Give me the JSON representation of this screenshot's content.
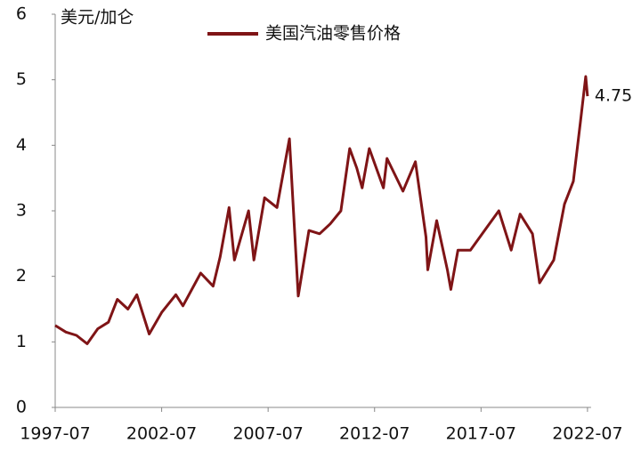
{
  "chart_data": {
    "type": "line",
    "y_label": "美元/加仑",
    "x": [
      "1997-07",
      "1998-01",
      "1998-07",
      "1999-01",
      "1999-07",
      "2000-01",
      "2000-06",
      "2000-12",
      "2001-05",
      "2001-12",
      "2002-07",
      "2003-03",
      "2003-07",
      "2004-05",
      "2004-12",
      "2005-04",
      "2005-09",
      "2005-12",
      "2006-08",
      "2006-11",
      "2007-05",
      "2007-12",
      "2008-07",
      "2008-12",
      "2009-06",
      "2009-12",
      "2010-06",
      "2010-12",
      "2011-05",
      "2011-09",
      "2011-12",
      "2012-04",
      "2012-12",
      "2013-02",
      "2013-11",
      "2014-06",
      "2014-12",
      "2015-01",
      "2015-06",
      "2015-12",
      "2016-02",
      "2016-06",
      "2017-01",
      "2017-09",
      "2018-05",
      "2018-12",
      "2019-05",
      "2019-12",
      "2020-04",
      "2020-12",
      "2021-06",
      "2021-11",
      "2022-03",
      "2022-06",
      "2022-07"
    ],
    "series": [
      {
        "name": "美国汽油零售价格",
        "color": "#7f1416",
        "values": [
          1.25,
          1.15,
          1.1,
          0.97,
          1.2,
          1.3,
          1.65,
          1.5,
          1.72,
          1.12,
          1.45,
          1.72,
          1.55,
          2.05,
          1.85,
          2.3,
          3.05,
          2.25,
          3.0,
          2.25,
          3.2,
          3.05,
          4.1,
          1.7,
          2.7,
          2.65,
          2.8,
          3.0,
          3.95,
          3.65,
          3.35,
          3.95,
          3.35,
          3.8,
          3.3,
          3.75,
          2.6,
          2.1,
          2.85,
          2.1,
          1.8,
          2.4,
          2.4,
          2.7,
          3.0,
          2.4,
          2.95,
          2.65,
          1.9,
          2.25,
          3.1,
          3.45,
          4.35,
          5.05,
          4.75
        ]
      }
    ],
    "xlim": [
      "1997-07",
      "2022-09"
    ],
    "xticks": [
      "1997-07",
      "2002-07",
      "2007-07",
      "2012-07",
      "2017-07",
      "2022-07"
    ],
    "ylim": [
      0,
      6
    ],
    "yticks": [
      0,
      1,
      2,
      3,
      4,
      5,
      6
    ],
    "legend": "top"
  }
}
